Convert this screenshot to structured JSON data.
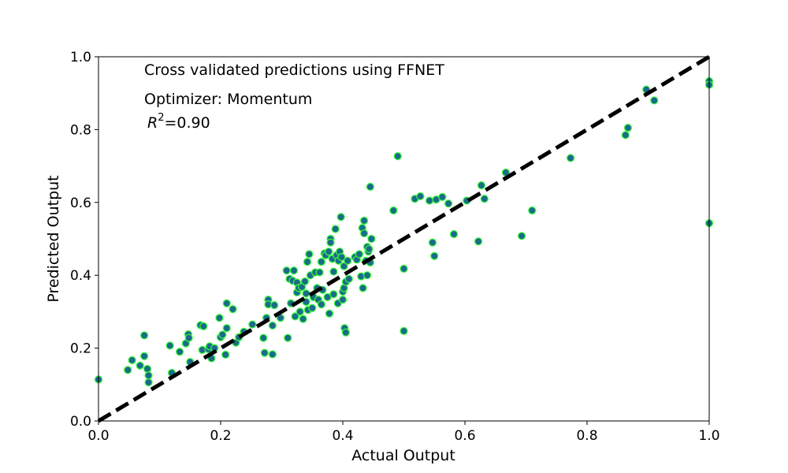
{
  "chart_data": {
    "type": "scatter",
    "title": "",
    "xlabel": "Actual Output",
    "ylabel": "Predicted Output",
    "xlim": [
      0,
      1
    ],
    "ylim": [
      0,
      1
    ],
    "xticks": [
      "0.0",
      "0.2",
      "0.4",
      "0.6",
      "0.8",
      "1.0"
    ],
    "yticks": [
      "0.0",
      "0.2",
      "0.4",
      "0.6",
      "0.8",
      "1.0"
    ],
    "grid": false,
    "annotations": {
      "line1": "Cross validated predictions using FFNET",
      "line2": "Optimizer: Momentum",
      "r2_symbol": "R",
      "r2_exp": "2",
      "r2_value": "=0.90"
    },
    "reference_line": {
      "from": [
        0,
        0
      ],
      "to": [
        1,
        1
      ],
      "style": "dashed",
      "color": "#000000"
    },
    "marker_fill": "#1b6b8a",
    "marker_edge": "#39ff39",
    "points": [
      [
        0.0,
        0.114
      ],
      [
        0.048,
        0.14
      ],
      [
        0.055,
        0.167
      ],
      [
        0.068,
        0.152
      ],
      [
        0.075,
        0.235
      ],
      [
        0.075,
        0.178
      ],
      [
        0.08,
        0.143
      ],
      [
        0.082,
        0.125
      ],
      [
        0.082,
        0.106
      ],
      [
        0.117,
        0.207
      ],
      [
        0.12,
        0.132
      ],
      [
        0.133,
        0.19
      ],
      [
        0.143,
        0.213
      ],
      [
        0.147,
        0.238
      ],
      [
        0.148,
        0.228
      ],
      [
        0.15,
        0.162
      ],
      [
        0.167,
        0.263
      ],
      [
        0.17,
        0.195
      ],
      [
        0.172,
        0.26
      ],
      [
        0.18,
        0.197
      ],
      [
        0.182,
        0.205
      ],
      [
        0.185,
        0.172
      ],
      [
        0.19,
        0.2
      ],
      [
        0.198,
        0.283
      ],
      [
        0.2,
        0.23
      ],
      [
        0.203,
        0.237
      ],
      [
        0.208,
        0.182
      ],
      [
        0.21,
        0.323
      ],
      [
        0.21,
        0.255
      ],
      [
        0.22,
        0.307
      ],
      [
        0.225,
        0.215
      ],
      [
        0.23,
        0.23
      ],
      [
        0.238,
        0.245
      ],
      [
        0.252,
        0.265
      ],
      [
        0.27,
        0.228
      ],
      [
        0.272,
        0.187
      ],
      [
        0.275,
        0.283
      ],
      [
        0.278,
        0.333
      ],
      [
        0.278,
        0.32
      ],
      [
        0.285,
        0.183
      ],
      [
        0.285,
        0.262
      ],
      [
        0.288,
        0.318
      ],
      [
        0.298,
        0.283
      ],
      [
        0.308,
        0.413
      ],
      [
        0.31,
        0.228
      ],
      [
        0.313,
        0.39
      ],
      [
        0.315,
        0.323
      ],
      [
        0.318,
        0.385
      ],
      [
        0.32,
        0.413
      ],
      [
        0.322,
        0.287
      ],
      [
        0.325,
        0.353
      ],
      [
        0.325,
        0.38
      ],
      [
        0.328,
        0.365
      ],
      [
        0.33,
        0.3
      ],
      [
        0.333,
        0.368
      ],
      [
        0.335,
        0.28
      ],
      [
        0.338,
        0.383
      ],
      [
        0.34,
        0.35
      ],
      [
        0.34,
        0.327
      ],
      [
        0.342,
        0.437
      ],
      [
        0.343,
        0.305
      ],
      [
        0.345,
        0.458
      ],
      [
        0.347,
        0.4
      ],
      [
        0.35,
        0.31
      ],
      [
        0.352,
        0.34
      ],
      [
        0.355,
        0.408
      ],
      [
        0.358,
        0.365
      ],
      [
        0.36,
        0.333
      ],
      [
        0.362,
        0.408
      ],
      [
        0.365,
        0.32
      ],
      [
        0.365,
        0.437
      ],
      [
        0.367,
        0.36
      ],
      [
        0.37,
        0.46
      ],
      [
        0.372,
        0.455
      ],
      [
        0.375,
        0.34
      ],
      [
        0.377,
        0.465
      ],
      [
        0.378,
        0.295
      ],
      [
        0.38,
        0.5
      ],
      [
        0.38,
        0.49
      ],
      [
        0.383,
        0.445
      ],
      [
        0.385,
        0.41
      ],
      [
        0.385,
        0.348
      ],
      [
        0.388,
        0.527
      ],
      [
        0.39,
        0.455
      ],
      [
        0.392,
        0.323
      ],
      [
        0.393,
        0.44
      ],
      [
        0.395,
        0.465
      ],
      [
        0.397,
        0.56
      ],
      [
        0.398,
        0.45
      ],
      [
        0.4,
        0.333
      ],
      [
        0.4,
        0.355
      ],
      [
        0.402,
        0.365
      ],
      [
        0.402,
        0.425
      ],
      [
        0.403,
        0.255
      ],
      [
        0.405,
        0.243
      ],
      [
        0.405,
        0.382
      ],
      [
        0.408,
        0.44
      ],
      [
        0.41,
        0.39
      ],
      [
        0.42,
        0.45
      ],
      [
        0.423,
        0.443
      ],
      [
        0.427,
        0.458
      ],
      [
        0.43,
        0.397
      ],
      [
        0.432,
        0.53
      ],
      [
        0.433,
        0.365
      ],
      [
        0.435,
        0.55
      ],
      [
        0.435,
        0.515
      ],
      [
        0.438,
        0.44
      ],
      [
        0.44,
        0.478
      ],
      [
        0.44,
        0.4
      ],
      [
        0.442,
        0.465
      ],
      [
        0.443,
        0.472
      ],
      [
        0.445,
        0.643
      ],
      [
        0.445,
        0.435
      ],
      [
        0.447,
        0.5
      ],
      [
        0.483,
        0.578
      ],
      [
        0.49,
        0.727
      ],
      [
        0.5,
        0.418
      ],
      [
        0.5,
        0.247
      ],
      [
        0.518,
        0.61
      ],
      [
        0.527,
        0.617
      ],
      [
        0.542,
        0.605
      ],
      [
        0.547,
        0.49
      ],
      [
        0.55,
        0.453
      ],
      [
        0.553,
        0.608
      ],
      [
        0.563,
        0.615
      ],
      [
        0.573,
        0.597
      ],
      [
        0.582,
        0.513
      ],
      [
        0.603,
        0.605
      ],
      [
        0.622,
        0.493
      ],
      [
        0.627,
        0.647
      ],
      [
        0.632,
        0.61
      ],
      [
        0.667,
        0.682
      ],
      [
        0.693,
        0.508
      ],
      [
        0.71,
        0.578
      ],
      [
        0.773,
        0.722
      ],
      [
        0.863,
        0.785
      ],
      [
        0.867,
        0.805
      ],
      [
        0.897,
        0.91
      ],
      [
        0.91,
        0.88
      ],
      [
        1.0,
        0.933
      ],
      [
        1.0,
        0.923
      ],
      [
        1.0,
        0.543
      ]
    ]
  }
}
